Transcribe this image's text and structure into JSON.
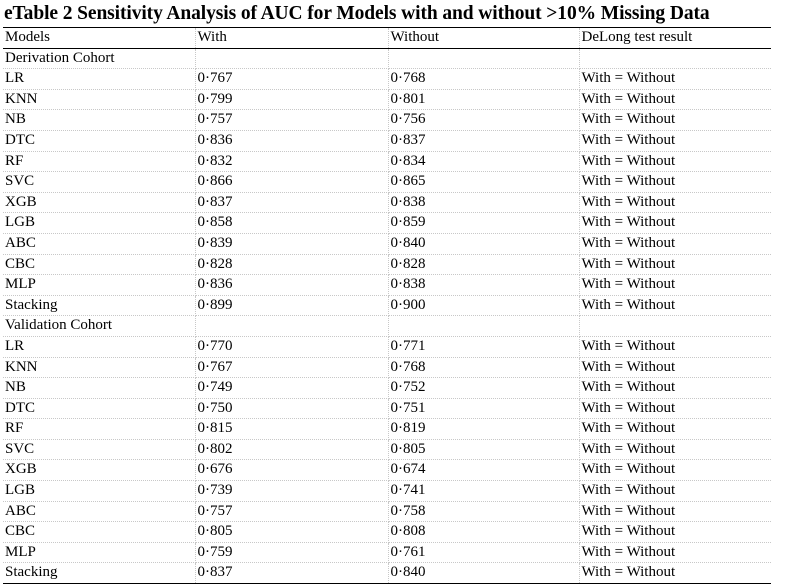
{
  "title": "eTable 2 Sensitivity Analysis of AUC for Models with and without >10% Missing Data",
  "headers": [
    "Models",
    "With",
    "Without",
    "DeLong test result"
  ],
  "sections": [
    {
      "name": "Derivation Cohort",
      "rows": [
        [
          "LR",
          "0·767",
          "0·768",
          "With = Without"
        ],
        [
          "KNN",
          "0·799",
          "0·801",
          "With = Without"
        ],
        [
          "NB",
          "0·757",
          "0·756",
          "With = Without"
        ],
        [
          "DTC",
          "0·836",
          "0·837",
          "With = Without"
        ],
        [
          "RF",
          "0·832",
          "0·834",
          "With = Without"
        ],
        [
          "SVC",
          "0·866",
          "0·865",
          "With = Without"
        ],
        [
          "XGB",
          "0·837",
          "0·838",
          "With = Without"
        ],
        [
          "LGB",
          "0·858",
          "0·859",
          "With = Without"
        ],
        [
          "ABC",
          "0·839",
          "0·840",
          "With = Without"
        ],
        [
          "CBC",
          "0·828",
          "0·828",
          "With = Without"
        ],
        [
          "MLP",
          "0·836",
          "0·838",
          "With = Without"
        ],
        [
          "Stacking",
          "0·899",
          "0·900",
          "With = Without"
        ]
      ]
    },
    {
      "name": "Validation Cohort",
      "rows": [
        [
          "LR",
          "0·770",
          "0·771",
          "With = Without"
        ],
        [
          "KNN",
          "0·767",
          "0·768",
          "With = Without"
        ],
        [
          "NB",
          "0·749",
          "0·752",
          "With = Without"
        ],
        [
          "DTC",
          "0·750",
          "0·751",
          "With = Without"
        ],
        [
          "RF",
          "0·815",
          "0·819",
          "With = Without"
        ],
        [
          "SVC",
          "0·802",
          "0·805",
          "With = Without"
        ],
        [
          "XGB",
          "0·676",
          "0·674",
          "With = Without"
        ],
        [
          "LGB",
          "0·739",
          "0·741",
          "With = Without"
        ],
        [
          "ABC",
          "0·757",
          "0·758",
          "With = Without"
        ],
        [
          "CBC",
          "0·805",
          "0·808",
          "With = Without"
        ],
        [
          "MLP",
          "0·759",
          "0·761",
          "With = Without"
        ],
        [
          "Stacking",
          "0·837",
          "0·840",
          "With = Without"
        ]
      ]
    }
  ]
}
